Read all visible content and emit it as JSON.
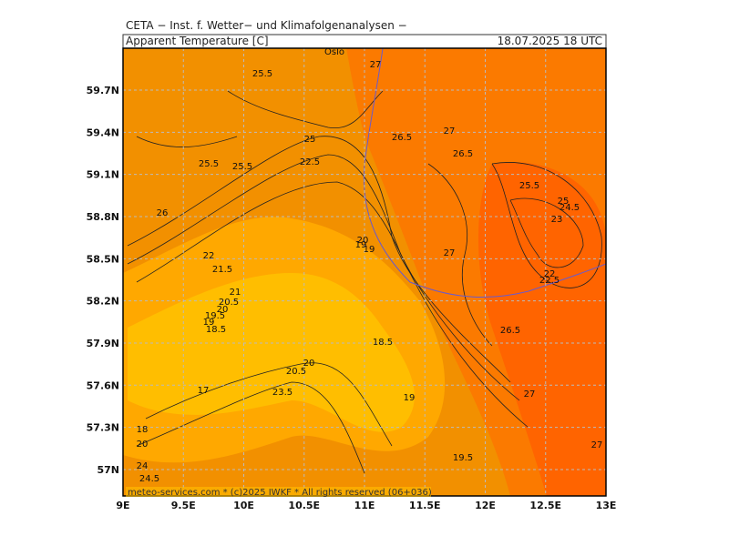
{
  "header": {
    "institute": "CETA − Inst. f. Wetter− und Klimafolgenanalysen −",
    "variable": "Apparent Temperature [C]",
    "valid_time": "18.07.2025 18 UTC"
  },
  "map": {
    "lat_ticks": [
      "59.7N",
      "59.4N",
      "59.1N",
      "58.8N",
      "58.5N",
      "58.2N",
      "57.9N",
      "57.6N",
      "57.3N",
      "57N"
    ],
    "lon_ticks": [
      "9E",
      "9.5E",
      "10E",
      "10.5E",
      "11E",
      "11.5E",
      "12E",
      "12.5E",
      "13E"
    ],
    "place": "Oslo",
    "contour_labels": [
      "25.5",
      "27",
      "26.5",
      "27",
      "26.5",
      "25.5",
      "25.5",
      "25",
      "22.5",
      "26",
      "25.5",
      "25",
      "24.5",
      "23",
      "20",
      "19",
      "19",
      "27",
      "22",
      "21.5",
      "22",
      "22.5",
      "21",
      "20.5",
      "20",
      "19.5",
      "19",
      "18.5",
      "26.5",
      "18.5",
      "20",
      "20.5",
      "17",
      "19",
      "27",
      "23.5",
      "18",
      "20",
      "27",
      "19.5",
      "24",
      "24.5"
    ],
    "footer": "meteo-services.com * (c)2025 IWKF * All rights reserved (06+036)"
  }
}
